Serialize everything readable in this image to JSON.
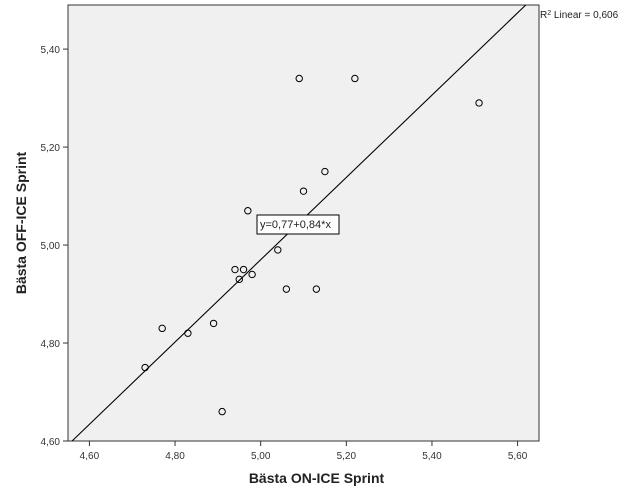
{
  "chart_data": {
    "type": "scatter",
    "xlabel": "Bästa ON-ICE Sprint",
    "ylabel": "Bästa OFF-ICE Sprint",
    "xlim": [
      4.55,
      5.65
    ],
    "ylim": [
      4.6,
      5.49
    ],
    "xticks": [
      {
        "value": 4.6,
        "label": "4,60"
      },
      {
        "value": 4.8,
        "label": "4,80"
      },
      {
        "value": 5.0,
        "label": "5,00"
      },
      {
        "value": 5.2,
        "label": "5,20"
      },
      {
        "value": 5.4,
        "label": "5,40"
      },
      {
        "value": 5.6,
        "label": "5,60"
      }
    ],
    "yticks": [
      {
        "value": 4.6,
        "label": "4,60"
      },
      {
        "value": 4.8,
        "label": "4,80"
      },
      {
        "value": 5.0,
        "label": "5,00"
      },
      {
        "value": 5.2,
        "label": "5,20"
      },
      {
        "value": 5.4,
        "label": "5,40"
      }
    ],
    "points": [
      {
        "x": 4.73,
        "y": 4.75
      },
      {
        "x": 4.77,
        "y": 4.83
      },
      {
        "x": 4.83,
        "y": 4.82
      },
      {
        "x": 4.89,
        "y": 4.84
      },
      {
        "x": 4.91,
        "y": 4.66
      },
      {
        "x": 4.94,
        "y": 4.95
      },
      {
        "x": 4.95,
        "y": 4.93
      },
      {
        "x": 4.96,
        "y": 4.95
      },
      {
        "x": 4.97,
        "y": 5.07
      },
      {
        "x": 4.98,
        "y": 4.94
      },
      {
        "x": 5.04,
        "y": 4.99
      },
      {
        "x": 5.06,
        "y": 4.91
      },
      {
        "x": 5.09,
        "y": 5.34
      },
      {
        "x": 5.1,
        "y": 5.11
      },
      {
        "x": 5.13,
        "y": 4.91
      },
      {
        "x": 5.15,
        "y": 5.15
      },
      {
        "x": 5.22,
        "y": 5.34
      },
      {
        "x": 5.51,
        "y": 5.29
      }
    ],
    "fit": {
      "type": "linear",
      "intercept": 0.77,
      "slope": 0.84
    },
    "equation_label": "y=0,77+0,84*x",
    "r2_label": {
      "prefix": "R",
      "sup": "2",
      "text": " Linear = 0,606"
    },
    "grid": false,
    "plot_background": "#f0f0f0",
    "marker_color": "#000000"
  }
}
